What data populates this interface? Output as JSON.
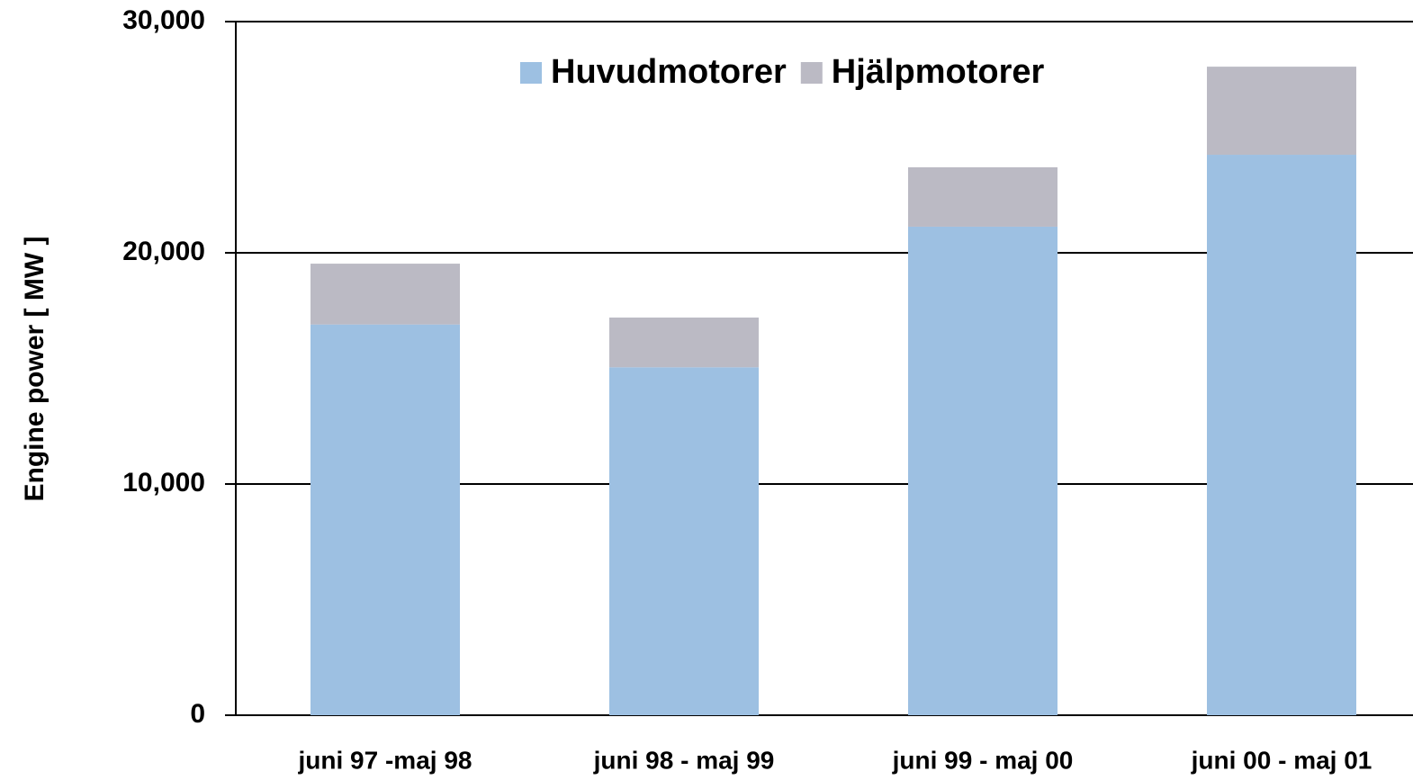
{
  "chart_data": {
    "type": "stacked_bar",
    "y_label": "Engine power [ MW ]",
    "categories": [
      "juni 97 -maj 98",
      "juni 98 - maj 99",
      "juni 99 - maj 00",
      "juni 00 - maj 01"
    ],
    "series": [
      {
        "name": "Huvudmotorer",
        "color": "#9dc0e2",
        "values": [
          16900,
          15050,
          21130,
          24240
        ]
      },
      {
        "name": "Hjälpmotorer",
        "color": "#bbbac4",
        "values": [
          2630,
          2150,
          2570,
          3810
        ]
      }
    ],
    "ylim": [
      0,
      30000
    ],
    "yticks": [
      0,
      {
        "value": 10000,
        "label": "10,000"
      },
      {
        "value": 20000,
        "label": "20,000"
      },
      {
        "value": 30000,
        "label": "30,000"
      }
    ],
    "grid": true,
    "legend": "top"
  }
}
